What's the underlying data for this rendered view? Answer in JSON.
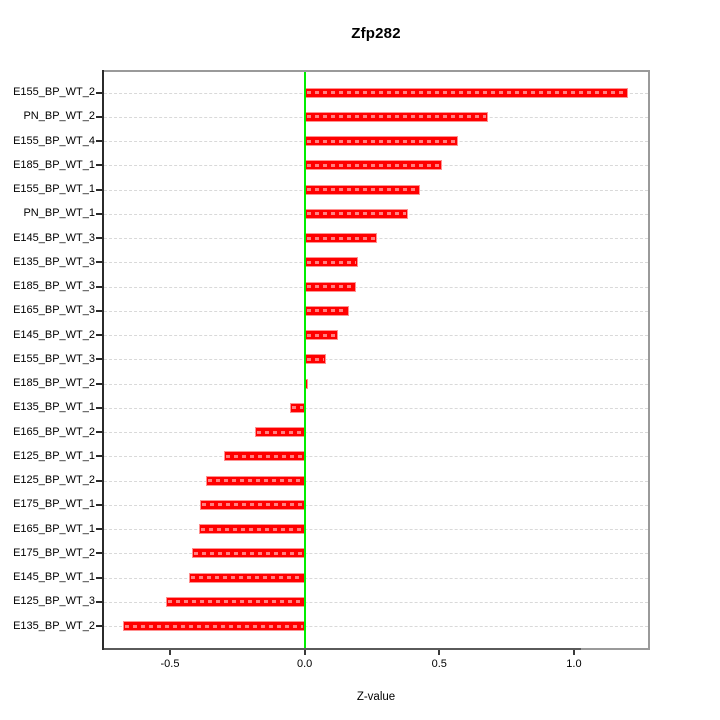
{
  "figure": {
    "background": "#ffffff"
  },
  "chart_data": {
    "type": "bar",
    "orientation": "horizontal",
    "title": "Zfp282",
    "xlabel": "Z-value",
    "ylabel": "",
    "categories": [
      "E155_BP_WT_2",
      "PN_BP_WT_2",
      "E155_BP_WT_4",
      "E185_BP_WT_1",
      "E155_BP_WT_1",
      "PN_BP_WT_1",
      "E145_BP_WT_3",
      "E135_BP_WT_3",
      "E185_BP_WT_3",
      "E165_BP_WT_3",
      "E145_BP_WT_2",
      "E155_BP_WT_3",
      "E185_BP_WT_2",
      "E135_BP_WT_1",
      "E165_BP_WT_2",
      "E125_BP_WT_1",
      "E125_BP_WT_2",
      "E175_BP_WT_1",
      "E165_BP_WT_1",
      "E175_BP_WT_2",
      "E145_BP_WT_1",
      "E125_BP_WT_3",
      "E135_BP_WT_2"
    ],
    "values": [
      1.2,
      0.68,
      0.57,
      0.51,
      0.43,
      0.385,
      0.27,
      0.2,
      0.19,
      0.165,
      0.125,
      0.08,
      0.012,
      -0.055,
      -0.185,
      -0.3,
      -0.365,
      -0.39,
      -0.392,
      -0.42,
      -0.43,
      -0.515,
      -0.675
    ],
    "xlim": [
      -0.745,
      1.275
    ],
    "xticks": [
      -0.5,
      0.0,
      0.5,
      1.0
    ],
    "xtick_labels": [
      "-0.5",
      "0.0",
      "0.5",
      "1.0"
    ],
    "zero_line_value": 0,
    "grid": "horizontal dashed line per category",
    "legend": "none",
    "colors": {
      "bar_fill": "#ff0000",
      "bar_edge": "#ff9090",
      "zero_line": "#00ee00",
      "gridline": "#d9d9d9",
      "box": "#9a9a9a",
      "y_axis": "#2b2b2b",
      "tick": "#3a3a3a",
      "text": "#000000"
    }
  }
}
